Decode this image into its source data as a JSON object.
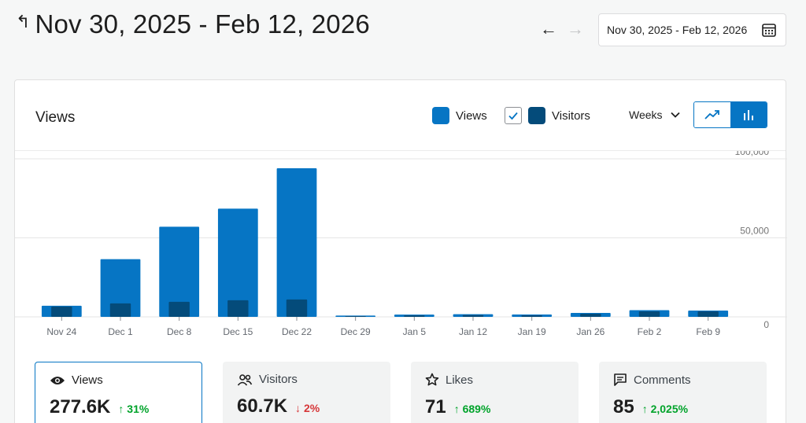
{
  "header": {
    "title": "Nov 30, 2025 - Feb 12, 2026",
    "date_picker_value": "Nov 30, 2025 - Feb 12, 2026"
  },
  "card": {
    "title": "Views",
    "legend": [
      {
        "label": "Views",
        "color": "#0675c4"
      },
      {
        "label": "Visitors",
        "color": "#044b7a",
        "checked": true
      }
    ],
    "period": "Weeks",
    "chart_modes": [
      "line-chart-icon",
      "bar-chart-icon"
    ],
    "active_mode": "bar-chart-icon"
  },
  "chart_data": {
    "type": "bar",
    "categories": [
      "Nov 24",
      "Dec 1",
      "Dec 8",
      "Dec 15",
      "Dec 22",
      "Dec 29",
      "Jan 5",
      "Jan 12",
      "Jan 19",
      "Jan 26",
      "Feb 2",
      "Feb 9"
    ],
    "series": [
      {
        "name": "Views",
        "color": "#0675c4",
        "values": [
          7000,
          36500,
          57000,
          68500,
          94000,
          800,
          1400,
          1700,
          1500,
          2500,
          4200,
          4000
        ]
      },
      {
        "name": "Visitors",
        "color": "#044b7a",
        "values": [
          6500,
          8500,
          9500,
          10500,
          11000,
          500,
          1000,
          1200,
          1000,
          2000,
          3500,
          3500
        ]
      }
    ],
    "y_ticks": [
      "100,000",
      "50,000",
      "0"
    ],
    "ylim": [
      0,
      100000
    ],
    "grid": true
  },
  "stats": [
    {
      "label": "Views",
      "icon": "eye-icon",
      "value": "277.6K",
      "change": "31%",
      "direction": "up",
      "selected": true
    },
    {
      "label": "Visitors",
      "icon": "people-icon",
      "value": "60.7K",
      "change": "2%",
      "direction": "down",
      "selected": false
    },
    {
      "label": "Likes",
      "icon": "star-icon",
      "value": "71",
      "change": "689%",
      "direction": "up",
      "selected": false
    },
    {
      "label": "Comments",
      "icon": "comment-icon",
      "value": "85",
      "change": "2,025%",
      "direction": "up",
      "selected": false
    }
  ]
}
